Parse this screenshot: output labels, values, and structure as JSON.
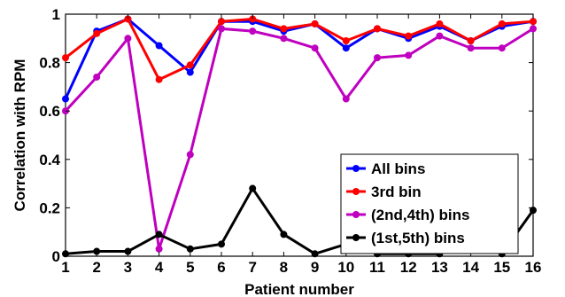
{
  "chart_data": {
    "type": "line",
    "xlabel": "Patient number",
    "ylabel": "Correlation with RPM",
    "x": [
      1,
      2,
      3,
      4,
      5,
      6,
      7,
      8,
      9,
      10,
      11,
      12,
      13,
      14,
      15,
      16
    ],
    "xticks": [
      "1",
      "2",
      "3",
      "4",
      "5",
      "6",
      "7",
      "8",
      "9",
      "10",
      "11",
      "12",
      "13",
      "14",
      "15",
      "16"
    ],
    "yticks": [
      "0",
      "0.2",
      "0.4",
      "0.6",
      "0.8",
      "1"
    ],
    "xlim": [
      1,
      16
    ],
    "ylim": [
      0,
      1
    ],
    "grid": false,
    "legend_position": "lower-right",
    "series": [
      {
        "name": "All bins",
        "color": "#0000ff",
        "values": [
          0.65,
          0.93,
          0.98,
          0.87,
          0.76,
          0.97,
          0.97,
          0.93,
          0.96,
          0.86,
          0.94,
          0.9,
          0.95,
          0.89,
          0.95,
          0.97
        ]
      },
      {
        "name": "3rd bin",
        "color": "#ff0000",
        "values": [
          0.82,
          0.92,
          0.98,
          0.73,
          0.79,
          0.97,
          0.98,
          0.94,
          0.96,
          0.89,
          0.94,
          0.91,
          0.96,
          0.89,
          0.96,
          0.97
        ]
      },
      {
        "name": "(2nd,4th) bins",
        "color": "#bf00bf",
        "values": [
          0.6,
          0.74,
          0.9,
          0.03,
          0.42,
          0.94,
          0.93,
          0.9,
          0.86,
          0.65,
          0.82,
          0.83,
          0.91,
          0.86,
          0.86,
          0.94
        ]
      },
      {
        "name": "(1st,5th) bins",
        "color": "#000000",
        "values": [
          0.01,
          0.02,
          0.02,
          0.09,
          0.03,
          0.05,
          0.28,
          0.09,
          0.01,
          0.05,
          0.01,
          0.01,
          0.01,
          0.08,
          0.01,
          0.19
        ]
      }
    ]
  }
}
